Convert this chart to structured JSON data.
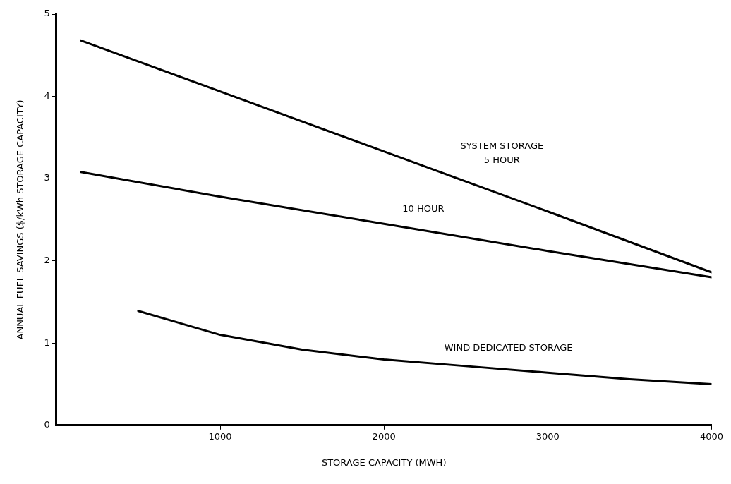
{
  "chart_data": {
    "type": "line",
    "xlabel": "STORAGE CAPACITY (MWH)",
    "ylabel": "ANNUAL FUEL SAVINGS ($/kWh STORAGE CAPACITY)",
    "xlim": [
      0,
      4000
    ],
    "xticks": [
      1000,
      2000,
      3000,
      4000
    ],
    "ylim": [
      0,
      5
    ],
    "yticks": [
      0,
      1,
      2,
      3,
      4,
      5
    ],
    "grid": false,
    "legend": false,
    "marker": "none",
    "line_style": "solid",
    "series": [
      {
        "name": "5 HOUR",
        "color": "#000000",
        "x": [
          150,
          1000,
          2000,
          3000,
          4000
        ],
        "values": [
          4.68,
          4.06,
          3.33,
          2.6,
          1.86
        ]
      },
      {
        "name": "10 HOUR",
        "color": "#000000",
        "x": [
          150,
          1000,
          2000,
          3000,
          4000
        ],
        "values": [
          3.08,
          2.78,
          2.45,
          2.12,
          1.8
        ]
      },
      {
        "name": "WIND DEDICATED STORAGE",
        "color": "#000000",
        "x": [
          500,
          1000,
          1500,
          2000,
          2500,
          3000,
          3500,
          4000
        ],
        "values": [
          1.39,
          1.1,
          0.92,
          0.8,
          0.72,
          0.64,
          0.56,
          0.5
        ]
      }
    ],
    "annotations": [
      "SYSTEM STORAGE"
    ]
  }
}
